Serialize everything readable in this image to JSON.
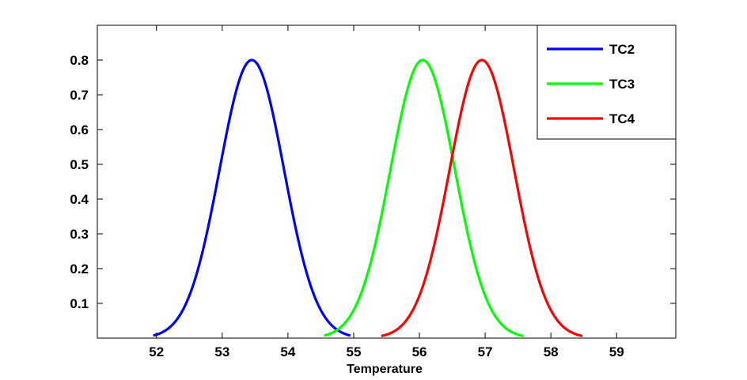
{
  "chart_data": {
    "type": "line",
    "xlabel": "Temperature",
    "ylabel": "",
    "xlim": [
      51.1,
      59.9
    ],
    "ylim": [
      0.0,
      0.9
    ],
    "xticks": [
      52,
      53,
      54,
      55,
      56,
      57,
      58,
      59
    ],
    "yticks": [
      0.1,
      0.2,
      0.3,
      0.4,
      0.5,
      0.6,
      0.7,
      0.8
    ],
    "ytick_labels": [
      "0.1",
      "0.2",
      "0.3",
      "0.4",
      "0.5",
      "0.6",
      "0.7",
      "0.8"
    ],
    "legend_position": "top-right",
    "grid": false,
    "series": [
      {
        "name": "TC2",
        "color": "#0000ff",
        "peak_x": 53.45,
        "peak_y": 0.8,
        "sigma": 0.49,
        "x_range": [
          51.95,
          54.95
        ]
      },
      {
        "name": "TC3",
        "color": "#00ff00",
        "peak_x": 56.05,
        "peak_y": 0.8,
        "sigma": 0.49,
        "x_range": [
          54.55,
          57.58
        ]
      },
      {
        "name": "TC4",
        "color": "#ff0000",
        "peak_x": 56.95,
        "peak_y": 0.8,
        "sigma": 0.49,
        "x_range": [
          55.42,
          58.48
        ]
      }
    ]
  }
}
